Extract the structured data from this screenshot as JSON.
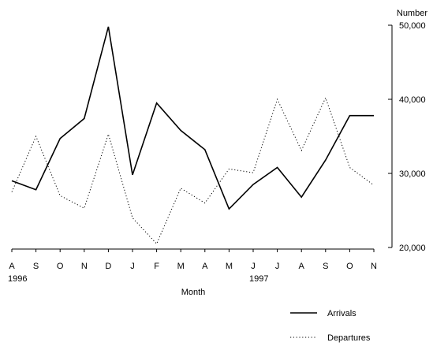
{
  "chart_data": {
    "type": "line",
    "title": "",
    "xlabel": "Month",
    "ylabel": "Number",
    "categories": [
      "A",
      "S",
      "O",
      "N",
      "D",
      "J",
      "F",
      "M",
      "A",
      "M",
      "J",
      "J",
      "A",
      "S",
      "O",
      "N"
    ],
    "year_labels": [
      {
        "label": "1996",
        "category_index": 0
      },
      {
        "label": "1997",
        "category_index": 10
      }
    ],
    "y_ticks": [
      20000,
      30000,
      40000,
      50000
    ],
    "y_tick_labels": [
      "20,000",
      "30,000",
      "40,000",
      "50,000"
    ],
    "ylim": [
      20000,
      50000
    ],
    "y_axis_side": "right",
    "grid": false,
    "legend_position": "bottom-right",
    "series": [
      {
        "name": "Arrivals",
        "style": "solid",
        "color": "#000000",
        "values": [
          29000,
          27800,
          34700,
          37400,
          49800,
          29800,
          39500,
          35800,
          33200,
          25200,
          28500,
          30800,
          26800,
          31800,
          37800,
          37800
        ]
      },
      {
        "name": "Departures",
        "style": "dotted",
        "color": "#000000",
        "values": [
          27500,
          35000,
          27000,
          25300,
          35300,
          24000,
          20500,
          28000,
          26000,
          30600,
          30100,
          40000,
          33100,
          40200,
          30800,
          28400
        ]
      }
    ]
  }
}
